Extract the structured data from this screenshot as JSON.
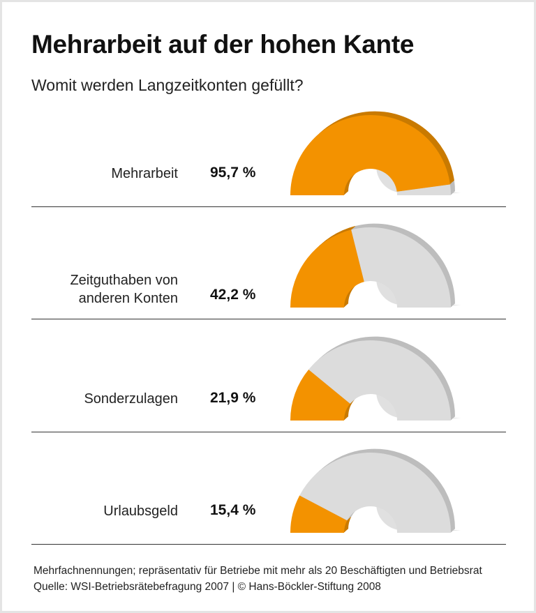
{
  "title": "Mehrarbeit auf der hohen Kante",
  "subtitle": "Womit werden Langzeitkonten gefüllt?",
  "colors": {
    "accent": "#f39200",
    "accent_dark": "#c97a00",
    "rest": "#dcdcdc",
    "rest_dark": "#bdbdbd"
  },
  "chart_data": {
    "type": "pie",
    "subtype": "half-donut gauges",
    "unit": "%",
    "categories": [
      "Mehrarbeit",
      "Zeitguthaben von anderen Konten",
      "Sonderzulagen",
      "Urlaubsgeld"
    ],
    "values": [
      95.7,
      42.2,
      21.9,
      15.4
    ],
    "value_labels": [
      "95,7 %",
      "42,2 %",
      "21,9 %",
      "15,4 %"
    ],
    "label_lines": [
      [
        "Mehrarbeit"
      ],
      [
        "Zeitguthaben von",
        "anderen Konten"
      ],
      [
        "Sonderzulagen"
      ],
      [
        "Urlaubsgeld"
      ]
    ],
    "range": [
      0,
      100
    ]
  },
  "footer": {
    "note": "Mehrfachnennungen; repräsentativ für Betriebe mit mehr als 20 Beschäftigten und Betriebsrat",
    "source": "Quelle: WSI-Betriebsrätebefragung 2007 | © Hans-Böckler-Stiftung 2008"
  }
}
